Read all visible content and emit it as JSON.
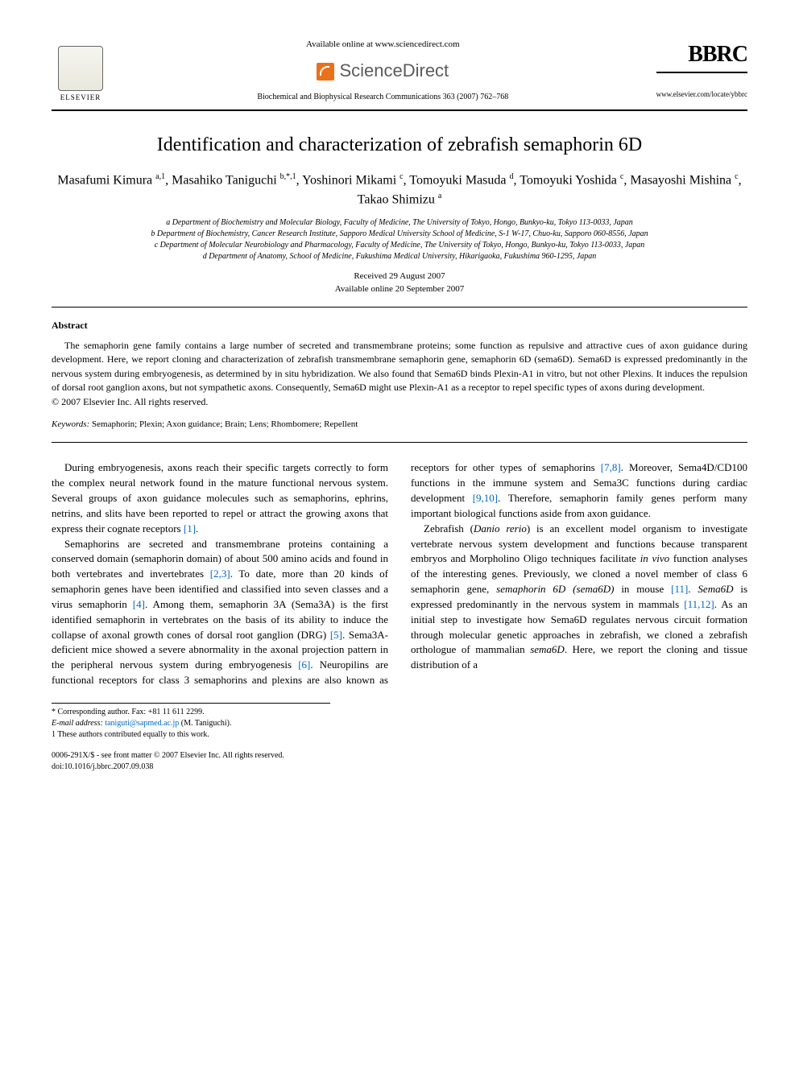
{
  "header": {
    "elsevier_label": "ELSEVIER",
    "available_online": "Available online at www.sciencedirect.com",
    "sciencedirect_label": "ScienceDirect",
    "journal_ref": "Biochemical and Biophysical Research Communications 363 (2007) 762–768",
    "bbrc_logo": "BBRC",
    "bbrc_url": "www.elsevier.com/locate/ybbrc"
  },
  "title": "Identification and characterization of zebrafish semaphorin 6D",
  "authors_html": "Masafumi Kimura <sup>a,1</sup>, Masahiko Taniguchi <sup>b,*,1</sup>, Yoshinori Mikami <sup>c</sup>, Tomoyuki Masuda <sup>d</sup>, Tomoyuki Yoshida <sup>c</sup>, Masayoshi Mishina <sup>c</sup>, Takao Shimizu <sup>a</sup>",
  "affiliations": [
    "a Department of Biochemistry and Molecular Biology, Faculty of Medicine, The University of Tokyo, Hongo, Bunkyo-ku, Tokyo 113-0033, Japan",
    "b Department of Biochemistry, Cancer Research Institute, Sapporo Medical University School of Medicine, S-1 W-17, Chuo-ku, Sapporo 060-8556, Japan",
    "c Department of Molecular Neurobiology and Pharmacology, Faculty of Medicine, The University of Tokyo, Hongo, Bunkyo-ku, Tokyo 113-0033, Japan",
    "d Department of Anatomy, School of Medicine, Fukushima Medical University, Hikarigaoka, Fukushima 960-1295, Japan"
  ],
  "dates": {
    "received": "Received 29 August 2007",
    "available": "Available online 20 September 2007"
  },
  "abstract": {
    "label": "Abstract",
    "text": "The semaphorin gene family contains a large number of secreted and transmembrane proteins; some function as repulsive and attractive cues of axon guidance during development. Here, we report cloning and characterization of zebrafish transmembrane semaphorin gene, semaphorin 6D (sema6D). Sema6D is expressed predominantly in the nervous system during embryogenesis, as determined by in situ hybridization. We also found that Sema6D binds Plexin-A1 in vitro, but not other Plexins. It induces the repulsion of dorsal root ganglion axons, but not sympathetic axons. Consequently, Sema6D might use Plexin-A1 as a receptor to repel specific types of axons during development.",
    "copyright": "© 2007 Elsevier Inc. All rights reserved."
  },
  "keywords": {
    "label": "Keywords:",
    "text": "Semaphorin; Plexin; Axon guidance; Brain; Lens; Rhombomere; Repellent"
  },
  "body": {
    "p1": "During embryogenesis, axons reach their specific targets correctly to form the complex neural network found in the mature functional nervous system. Several groups of axon guidance molecules such as semaphorins, ephrins, netrins, and slits have been reported to repel or attract the growing axons that express their cognate receptors ",
    "r1": "[1]",
    "p1b": ".",
    "p2": "Semaphorins are secreted and transmembrane proteins containing a conserved domain (semaphorin domain) of about 500 amino acids and found in both vertebrates and invertebrates ",
    "r23": "[2,3]",
    "p2b": ". To date, more than 20 kinds of semaphorin genes have been identified and classified into seven classes and a virus semaphorin ",
    "r4": "[4]",
    "p2c": ". Among them, semaphorin 3A (Sema3A) is the first identified semaphorin in vertebrates on the basis of its ability to induce the collapse of axonal growth cones of dorsal root ganglion (DRG) ",
    "r5": "[5]",
    "p2d": ". Sema3A-deficient mice showed a severe abnormality in the axonal projection pattern in the peripheral nervous system during embryogenesis ",
    "r6": "[6]",
    "p2e": ". Neuropilins are functional receptors for class 3 semaphorins and plexins are also known as receptors for other types of semaphorins ",
    "r78": "[7,8]",
    "p2f": ". Moreover, Sema4D/CD100 functions in the immune system and Sema3C functions during cardiac development ",
    "r910": "[9,10]",
    "p2g": ". Therefore, semaphorin family genes perform many important biological functions aside from axon guidance.",
    "p3a": "Zebrafish (",
    "p3_em": "Danio rerio",
    "p3b": ") is an excellent model organism to investigate vertebrate nervous system development and functions because transparent embryos and Morpholino Oligo techniques facilitate ",
    "p3_em2": "in vivo",
    "p3c": " function analyses of the interesting genes. Previously, we cloned a novel member of class 6 semaphorin gene, ",
    "p3_em3": "semaphorin 6D (sema6D)",
    "p3d": " in mouse ",
    "r11": "[11]",
    "p3e": ". ",
    "p3_em4": "Sema6D",
    "p3f": " is expressed predominantly in the nervous system in mammals ",
    "r1112": "[11,12]",
    "p3g": ". As an initial step to investigate how Sema6D regulates nervous circuit formation through molecular genetic approaches in zebrafish, we cloned a zebrafish orthologue of mammalian ",
    "p3_em5": "sema6D",
    "p3h": ". Here, we report the cloning and tissue distribution of a"
  },
  "footnotes": {
    "corresponding": "* Corresponding author. Fax: +81 11 611 2299.",
    "email_label": "E-mail address:",
    "email": "taniguti@sapmed.ac.jp",
    "email_who": "(M. Taniguchi).",
    "equal": "1 These authors contributed equally to this work."
  },
  "footer": {
    "front_matter": "0006-291X/$ - see front matter © 2007 Elsevier Inc. All rights reserved.",
    "doi": "doi:10.1016/j.bbrc.2007.09.038"
  },
  "colors": {
    "link": "#0066cc",
    "sd_orange": "#e9711c",
    "text": "#000000",
    "bg": "#ffffff"
  },
  "typography": {
    "title_fontsize": 24,
    "author_fontsize": 16,
    "body_fontsize": 13,
    "abstract_fontsize": 12,
    "affil_fontsize": 10,
    "footnote_fontsize": 10
  }
}
